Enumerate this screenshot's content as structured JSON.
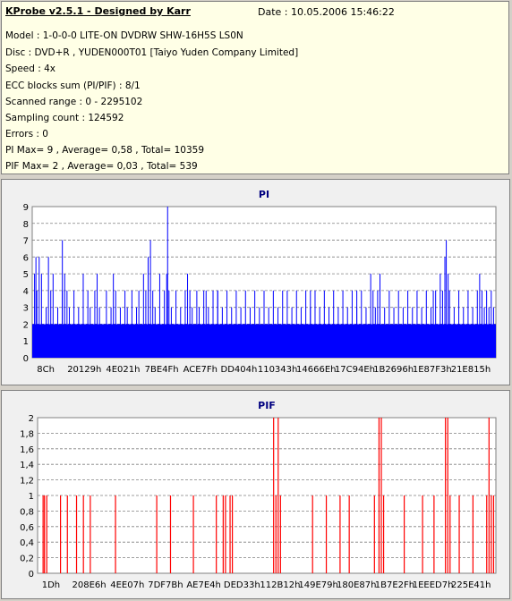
{
  "info": {
    "title": "KProbe v2.5.1 - Designed by Karr",
    "date": "Date : 10.05.2006 15:46:22",
    "lines": [
      "Model : 1-0-0-0 LITE-ON DVDRW SHW-16H5S  LS0N",
      "Disc : DVD+R , YUDEN000T01 [Taiyo Yuden Company Limited]",
      "Speed : 4x",
      "ECC blocks sum (PI/PIF) : 8/1",
      "Scanned range : 0 - 2295102",
      "Sampling count : 124592",
      "Errors : 0",
      "PI Max= 9 , Average= 0,58 , Total= 10359",
      "PIF Max= 2 , Average= 0,03 , Total= 539"
    ]
  },
  "colors": {
    "pi": "#0000ff",
    "pif": "#ff0000",
    "grid": "#808080",
    "title": "#000080"
  },
  "chart_data": [
    {
      "type": "bar",
      "title": "PI",
      "ylim": [
        0,
        9
      ],
      "yticks": [
        "0",
        "1",
        "2",
        "3",
        "4",
        "5",
        "6",
        "7",
        "8",
        "9"
      ],
      "xticks": [
        "8Ch",
        "20129h",
        "4E021h",
        "7BE4Fh",
        "ACE7Fh",
        "DD404h",
        "110343h",
        "14666Eh",
        "17C94Eh",
        "1B2696h",
        "1E87F3h",
        "21E815h"
      ],
      "grid": "horizontal dashed",
      "baseline": 2,
      "spikes": [
        [
          0.005,
          5
        ],
        [
          0.01,
          4
        ],
        [
          0.015,
          6
        ],
        [
          0.02,
          5
        ],
        [
          0.03,
          3
        ],
        [
          0.035,
          6
        ],
        [
          0.04,
          4
        ],
        [
          0.045,
          5
        ],
        [
          0.055,
          3
        ],
        [
          0.065,
          4
        ],
        [
          0.07,
          5
        ],
        [
          0.075,
          4
        ],
        [
          0.08,
          3
        ],
        [
          0.09,
          4
        ],
        [
          0.1,
          3
        ],
        [
          0.11,
          5
        ],
        [
          0.12,
          4
        ],
        [
          0.125,
          3
        ],
        [
          0.135,
          4
        ],
        [
          0.14,
          5
        ],
        [
          0.145,
          3
        ],
        [
          0.16,
          4
        ],
        [
          0.17,
          3
        ],
        [
          0.175,
          5
        ],
        [
          0.18,
          4
        ],
        [
          0.19,
          3
        ],
        [
          0.2,
          4
        ],
        [
          0.205,
          3
        ],
        [
          0.215,
          4
        ],
        [
          0.225,
          3
        ],
        [
          0.23,
          4
        ],
        [
          0.24,
          5
        ],
        [
          0.245,
          4
        ],
        [
          0.25,
          6
        ],
        [
          0.255,
          7
        ],
        [
          0.26,
          4
        ],
        [
          0.265,
          3
        ],
        [
          0.275,
          5
        ],
        [
          0.285,
          4
        ],
        [
          0.29,
          5
        ],
        [
          0.295,
          4
        ],
        [
          0.3,
          3
        ],
        [
          0.31,
          4
        ],
        [
          0.32,
          3
        ],
        [
          0.33,
          4
        ],
        [
          0.335,
          5
        ],
        [
          0.34,
          4
        ],
        [
          0.345,
          3
        ],
        [
          0.355,
          4
        ],
        [
          0.36,
          3
        ],
        [
          0.37,
          4
        ],
        [
          0.375,
          4
        ],
        [
          0.38,
          3
        ],
        [
          0.39,
          4
        ],
        [
          0.4,
          4
        ],
        [
          0.41,
          3
        ],
        [
          0.42,
          4
        ],
        [
          0.43,
          3
        ],
        [
          0.44,
          4
        ],
        [
          0.45,
          3
        ],
        [
          0.46,
          4
        ],
        [
          0.47,
          3
        ],
        [
          0.48,
          4
        ],
        [
          0.49,
          3
        ],
        [
          0.5,
          4
        ],
        [
          0.51,
          3
        ],
        [
          0.52,
          4
        ],
        [
          0.53,
          3
        ],
        [
          0.54,
          4
        ],
        [
          0.55,
          4
        ],
        [
          0.56,
          3
        ],
        [
          0.57,
          4
        ],
        [
          0.58,
          3
        ],
        [
          0.59,
          4
        ],
        [
          0.6,
          3
        ],
        [
          0.61,
          4
        ],
        [
          0.62,
          3
        ],
        [
          0.63,
          4
        ],
        [
          0.64,
          3
        ],
        [
          0.65,
          4
        ],
        [
          0.66,
          3
        ],
        [
          0.67,
          4
        ],
        [
          0.68,
          3
        ],
        [
          0.69,
          4
        ],
        [
          0.7,
          3
        ],
        [
          0.71,
          4
        ],
        [
          0.72,
          3
        ],
        [
          0.73,
          5
        ],
        [
          0.735,
          4
        ],
        [
          0.74,
          3
        ],
        [
          0.745,
          4
        ],
        [
          0.75,
          5
        ],
        [
          0.76,
          3
        ],
        [
          0.77,
          4
        ],
        [
          0.78,
          3
        ],
        [
          0.79,
          4
        ],
        [
          0.8,
          3
        ],
        [
          0.81,
          4
        ],
        [
          0.82,
          3
        ],
        [
          0.83,
          4
        ],
        [
          0.84,
          3
        ],
        [
          0.85,
          4
        ],
        [
          0.86,
          3
        ],
        [
          0.865,
          4
        ],
        [
          0.87,
          4
        ],
        [
          0.88,
          5
        ],
        [
          0.885,
          4
        ],
        [
          0.89,
          6
        ],
        [
          0.893,
          7
        ],
        [
          0.897,
          5
        ],
        [
          0.9,
          4
        ],
        [
          0.91,
          3
        ],
        [
          0.92,
          4
        ],
        [
          0.93,
          3
        ],
        [
          0.94,
          4
        ],
        [
          0.95,
          3
        ],
        [
          0.96,
          4
        ],
        [
          0.965,
          5
        ],
        [
          0.97,
          4
        ],
        [
          0.975,
          3
        ],
        [
          0.98,
          4
        ],
        [
          0.985,
          3
        ],
        [
          0.99,
          4
        ],
        [
          0.995,
          3
        ],
        [
          0.292,
          9
        ],
        [
          0.065,
          7
        ],
        [
          0.008,
          6
        ],
        [
          0.4,
          4
        ],
        [
          0.6,
          4
        ],
        [
          0.7,
          4
        ]
      ]
    },
    {
      "type": "bar",
      "title": "PIF",
      "ylim": [
        0,
        2
      ],
      "yticks": [
        "0",
        "0,2",
        "0,4",
        "0,6",
        "0,8",
        "1",
        "1,2",
        "1,4",
        "1,6",
        "1,8",
        "2"
      ],
      "xticks": [
        "1Dh",
        "208E6h",
        "4EE07h",
        "7DF7Bh",
        "AE7E4h",
        "DED33h",
        "112B12h",
        "149E79h",
        "180E87h",
        "1B7E2Fh",
        "1EEED7h",
        "225E41h"
      ],
      "grid": "horizontal dashed",
      "bars": [
        [
          0.012,
          1
        ],
        [
          0.015,
          1
        ],
        [
          0.02,
          1
        ],
        [
          0.05,
          1
        ],
        [
          0.065,
          1
        ],
        [
          0.085,
          1
        ],
        [
          0.1,
          1
        ],
        [
          0.115,
          1
        ],
        [
          0.17,
          1
        ],
        [
          0.26,
          1
        ],
        [
          0.29,
          1
        ],
        [
          0.34,
          1
        ],
        [
          0.39,
          1
        ],
        [
          0.405,
          1
        ],
        [
          0.41,
          1
        ],
        [
          0.42,
          1
        ],
        [
          0.425,
          1
        ],
        [
          0.515,
          2
        ],
        [
          0.52,
          1
        ],
        [
          0.525,
          2
        ],
        [
          0.53,
          1
        ],
        [
          0.6,
          1
        ],
        [
          0.63,
          1
        ],
        [
          0.66,
          1
        ],
        [
          0.68,
          1
        ],
        [
          0.735,
          1
        ],
        [
          0.745,
          2
        ],
        [
          0.75,
          2
        ],
        [
          0.755,
          1
        ],
        [
          0.8,
          1
        ],
        [
          0.84,
          1
        ],
        [
          0.865,
          1
        ],
        [
          0.89,
          2
        ],
        [
          0.895,
          2
        ],
        [
          0.9,
          1
        ],
        [
          0.92,
          1
        ],
        [
          0.95,
          1
        ],
        [
          0.98,
          1
        ],
        [
          0.985,
          2
        ],
        [
          0.99,
          1
        ],
        [
          0.995,
          1
        ]
      ]
    }
  ]
}
